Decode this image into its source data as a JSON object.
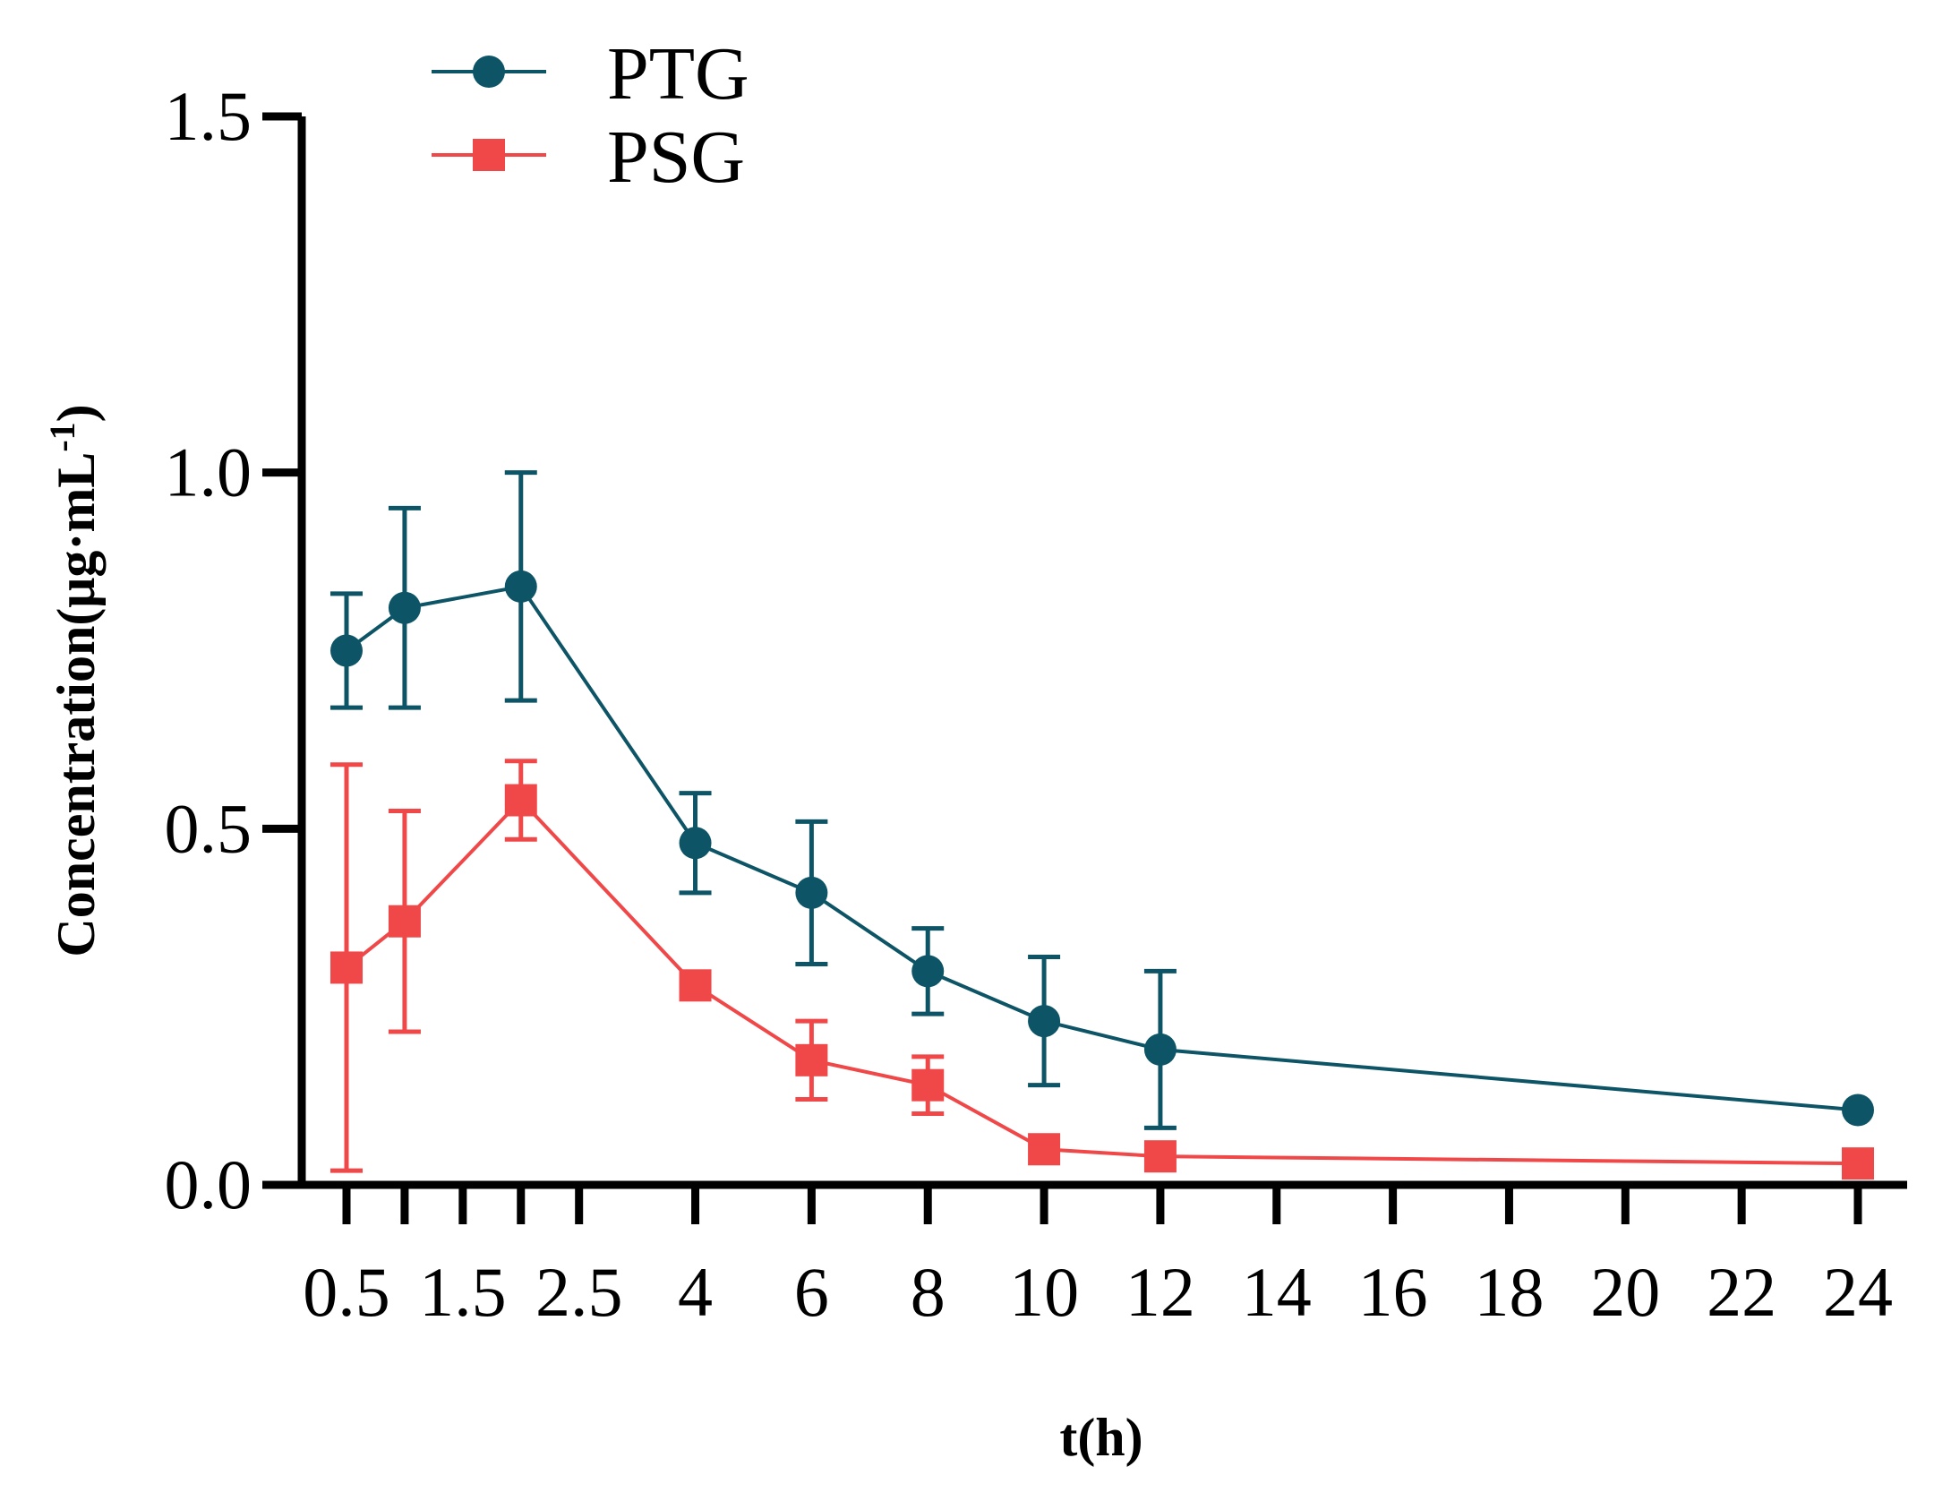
{
  "chart_data": {
    "type": "line",
    "title": "",
    "xlabel": "t(h)",
    "ylabel": "Concentration(μg·mL",
    "ylabel_superscript": "-1",
    "ylabel_close": ")",
    "ylim": [
      0,
      1.5
    ],
    "yticks": [
      "0.0",
      "0.5",
      "1.0",
      "1.5"
    ],
    "ytick_values": [
      0,
      0.5,
      1.0,
      1.5
    ],
    "x_positions": [
      0.5,
      1.5,
      2.5,
      4,
      6,
      8,
      10,
      12,
      14,
      16,
      18,
      20,
      22,
      24
    ],
    "xtick_labels": [
      "0.5",
      "1.5",
      "2.5",
      "4",
      "6",
      "8",
      "10",
      "12",
      "14",
      "16",
      "18",
      "20",
      "22",
      "24"
    ],
    "x_minor_ticks": [
      1,
      2
    ],
    "legend_position": "top-left",
    "series": [
      {
        "name": "PTG",
        "color": "#0d5566",
        "marker": "circle",
        "points": [
          {
            "x": 0.5,
            "y": 0.75,
            "err": 0.08
          },
          {
            "x": 1,
            "y": 0.81,
            "err": 0.14
          },
          {
            "x": 2,
            "y": 0.84,
            "err": 0.16
          },
          {
            "x": 4,
            "y": 0.48,
            "err": 0.07
          },
          {
            "x": 6,
            "y": 0.41,
            "err": 0.1
          },
          {
            "x": 8,
            "y": 0.3,
            "err": 0.06
          },
          {
            "x": 10,
            "y": 0.23,
            "err": 0.09
          },
          {
            "x": 12,
            "y": 0.19,
            "err": 0.11
          },
          {
            "x": 24,
            "y": 0.105,
            "err": 0
          }
        ]
      },
      {
        "name": "PSG",
        "color": "#f04848",
        "marker": "square",
        "points": [
          {
            "x": 0.5,
            "y": 0.305,
            "err": 0.285
          },
          {
            "x": 1,
            "y": 0.37,
            "err": 0.155
          },
          {
            "x": 2,
            "y": 0.54,
            "err": 0.055
          },
          {
            "x": 4,
            "y": 0.28,
            "err": 0
          },
          {
            "x": 6,
            "y": 0.175,
            "err": 0.055
          },
          {
            "x": 8,
            "y": 0.14,
            "err": 0.04
          },
          {
            "x": 10,
            "y": 0.05,
            "err": 0
          },
          {
            "x": 12,
            "y": 0.04,
            "err": 0
          },
          {
            "x": 24,
            "y": 0.03,
            "err": 0
          }
        ]
      }
    ]
  }
}
